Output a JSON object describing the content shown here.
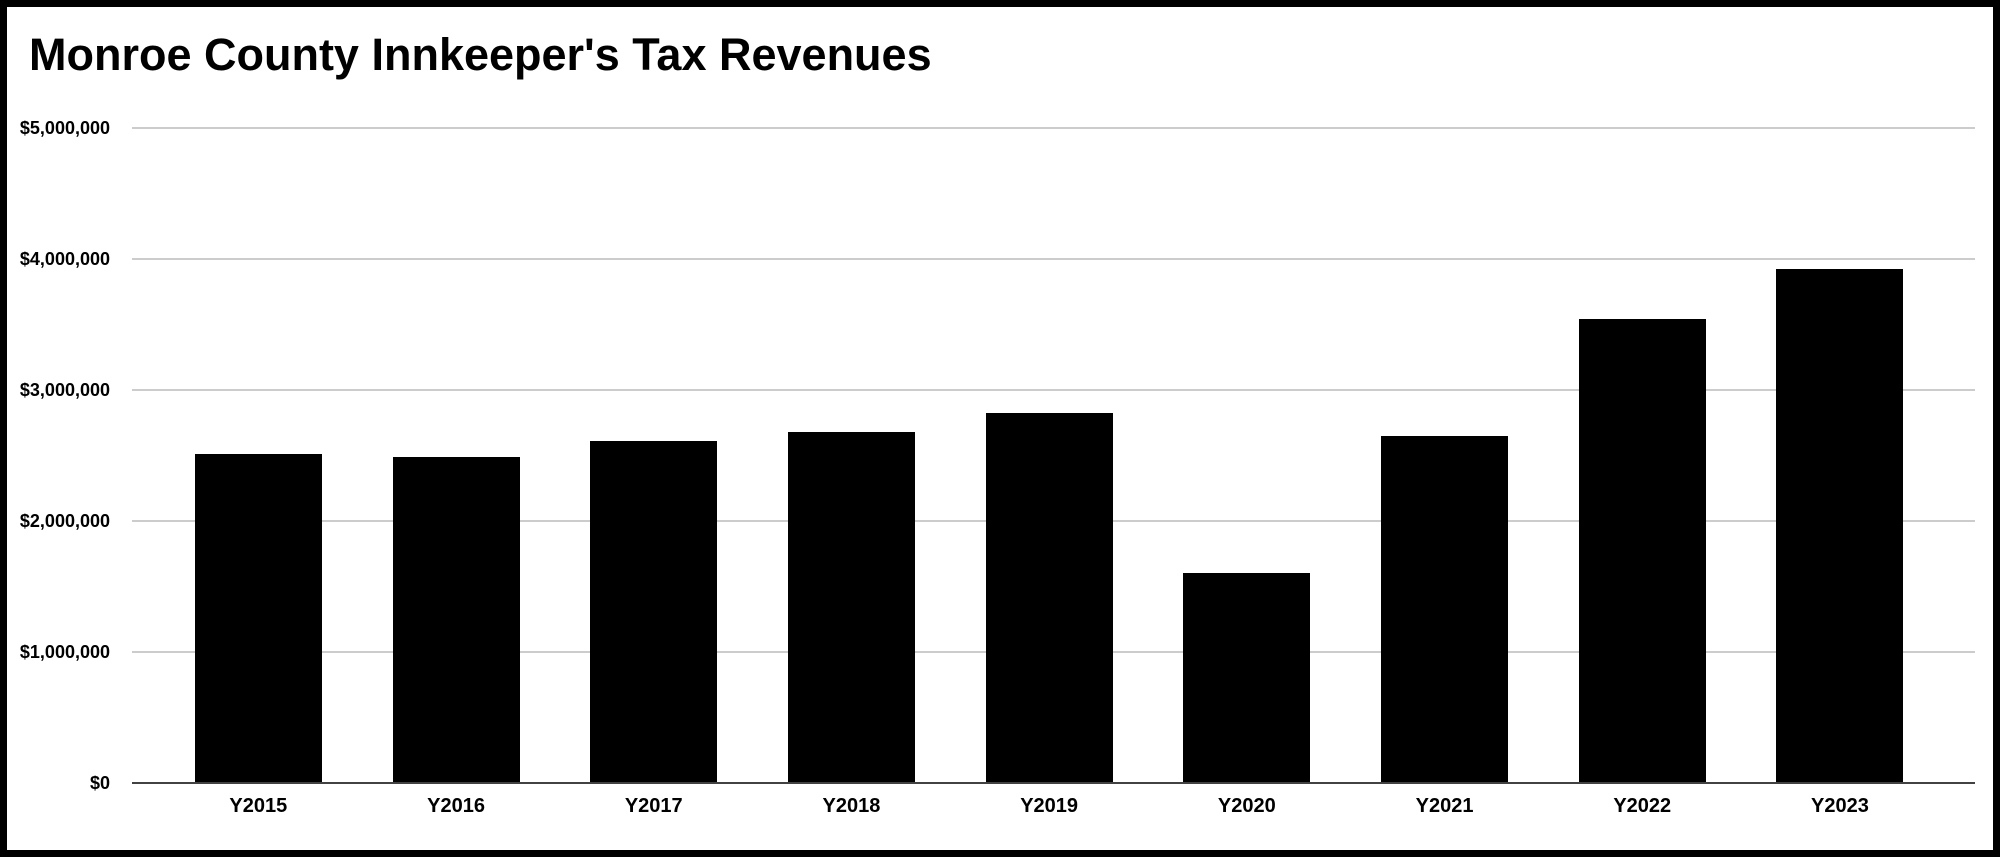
{
  "page": {
    "background_color": "#ffffff",
    "frame_border_color": "#000000"
  },
  "chart_data": {
    "type": "bar",
    "title": "Monroe County Innkeeper's Tax Revenues",
    "categories": [
      "Y2015",
      "Y2016",
      "Y2017",
      "Y2018",
      "Y2019",
      "Y2020",
      "Y2021",
      "Y2022",
      "Y2023"
    ],
    "values": [
      2510000,
      2490000,
      2610000,
      2680000,
      2820000,
      1600000,
      2650000,
      3540000,
      3920000
    ],
    "xlabel": "",
    "ylabel": "",
    "ylim": [
      0,
      5000000
    ],
    "y_ticks": [
      {
        "label": "$5,000,000",
        "value": 5000000
      },
      {
        "label": "$4,000,000",
        "value": 4000000
      },
      {
        "label": "$3,000,000",
        "value": 3000000
      },
      {
        "label": "$2,000,000",
        "value": 2000000
      },
      {
        "label": "$1,000,000",
        "value": 1000000
      },
      {
        "label": "$0",
        "value": 0
      }
    ],
    "grid": true,
    "legend": "none",
    "bar_color": "#000000",
    "gridline_color": "#cccccc",
    "axis_line_color": "#424242",
    "text_color": "#000000"
  }
}
